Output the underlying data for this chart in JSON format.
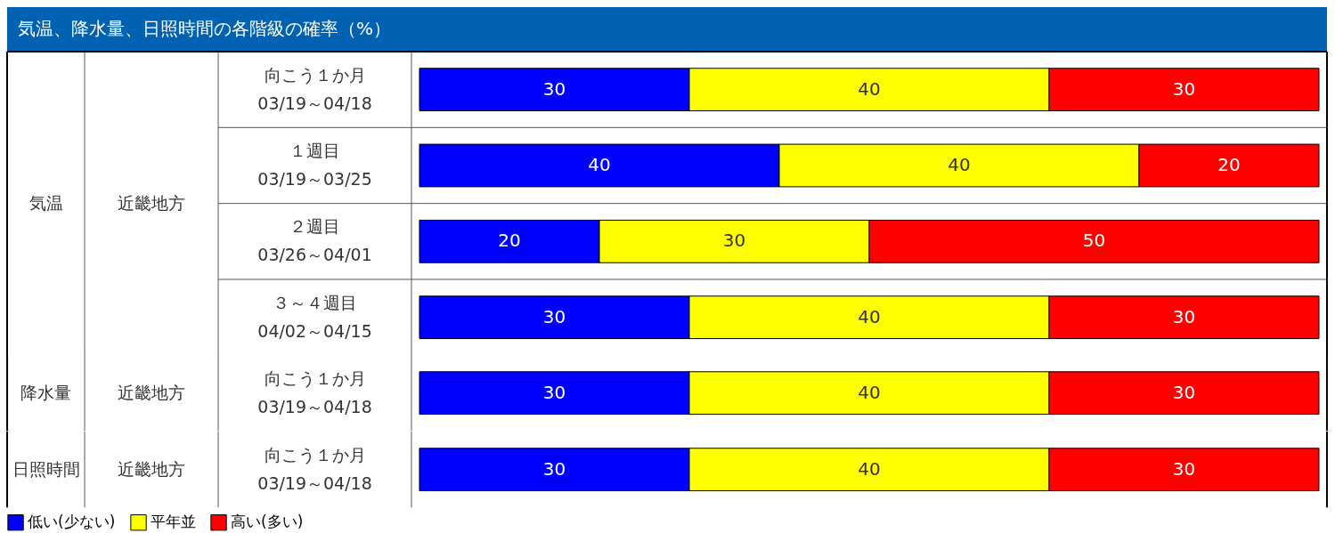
{
  "chart_data": [
    {
      "type": "bar",
      "orientation": "horizontal",
      "stacked": true,
      "title": "気温、降水量、日照時間の各階級の確率（%）",
      "categories": [
        "向こう１か月\n03/19～04/18",
        "１週目\n03/19～03/25",
        "２週目\n03/26～04/01",
        "３～４週目\n04/02～04/15"
      ],
      "series": [
        {
          "color": "#0000ff",
          "values": [
            30,
            40,
            20,
            30
          ]
        },
        {
          "color": "#ffff00",
          "values": [
            40,
            40,
            30,
            40
          ]
        },
        {
          "color": "#ff0000",
          "values": [
            30,
            20,
            50,
            30
          ]
        }
      ],
      "annotations": [
        "気温",
        "近畿地方"
      ],
      "xlim": [
        0,
        100
      ],
      "data_labels": true,
      "tick_labels": "y"
    },
    {
      "type": "bar",
      "orientation": "horizontal",
      "stacked": true,
      "categories": [
        "向こう１か月\n03/19～04/18"
      ],
      "series": [
        {
          "color": "#0000ff",
          "values": [
            30
          ]
        },
        {
          "color": "#ffff00",
          "values": [
            40
          ]
        },
        {
          "color": "#ff0000",
          "values": [
            30
          ]
        }
      ],
      "annotations": [
        "降水量",
        "近畿地方"
      ],
      "xlim": [
        0,
        100
      ],
      "data_labels": true,
      "tick_labels": "y"
    },
    {
      "type": "bar",
      "orientation": "horizontal",
      "stacked": true,
      "categories": [
        "向こう１か月\n03/19～04/18"
      ],
      "series": [
        {
          "name": "低い(少ない)",
          "color": "#0000ff",
          "values": [
            30
          ]
        },
        {
          "name": "平年並",
          "color": "#ffff00",
          "values": [
            40
          ]
        },
        {
          "name": "高い(多い)",
          "color": "#ff0000",
          "values": [
            30
          ]
        }
      ],
      "annotations": [
        "日照時間",
        "近畿地方"
      ],
      "xlim": [
        0,
        100
      ],
      "data_labels": true,
      "legend": "bottom left",
      "tick_labels": "y"
    }
  ]
}
